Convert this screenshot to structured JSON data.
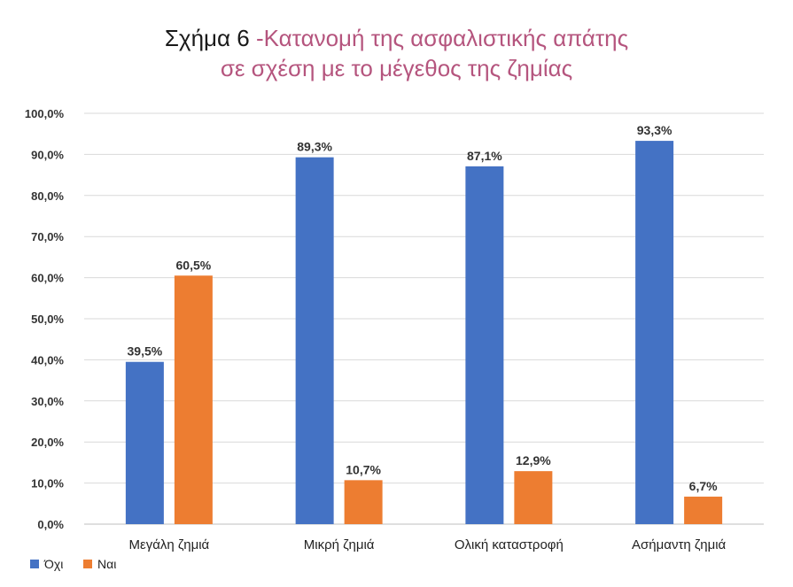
{
  "chart_data": {
    "type": "bar",
    "title_prefix": "Σχήμα 6",
    "title_line1": "-Κατανομή της ασφαλιστικής απάτης",
    "title_line2": "σε σχέση με το μέγεθος της ζημίας",
    "categories": [
      "Μεγάλη ζημιά",
      "Μικρή ζημιά",
      "Ολική καταστροφή",
      "Ασήμαντη ζημιά"
    ],
    "series": [
      {
        "name": "Όχι",
        "values": [
          39.5,
          89.3,
          87.1,
          93.3
        ],
        "color": "#4472c4"
      },
      {
        "name": "Ναι",
        "values": [
          60.5,
          10.7,
          12.9,
          6.7
        ],
        "color": "#ed7d31"
      }
    ],
    "data_labels": [
      [
        "39,5%",
        "89,3%",
        "87,1%",
        "93,3%"
      ],
      [
        "60,5%",
        "10,7%",
        "12,9%",
        "6,7%"
      ]
    ],
    "y_ticks": [
      "0,0%",
      "10,0%",
      "20,0%",
      "30,0%",
      "40,0%",
      "50,0%",
      "60,0%",
      "70,0%",
      "80,0%",
      "90,0%",
      "100,0%"
    ],
    "ylim": [
      0,
      100
    ],
    "xlabel": "",
    "ylabel": "",
    "grid": true,
    "legend_position": "bottom-left"
  }
}
